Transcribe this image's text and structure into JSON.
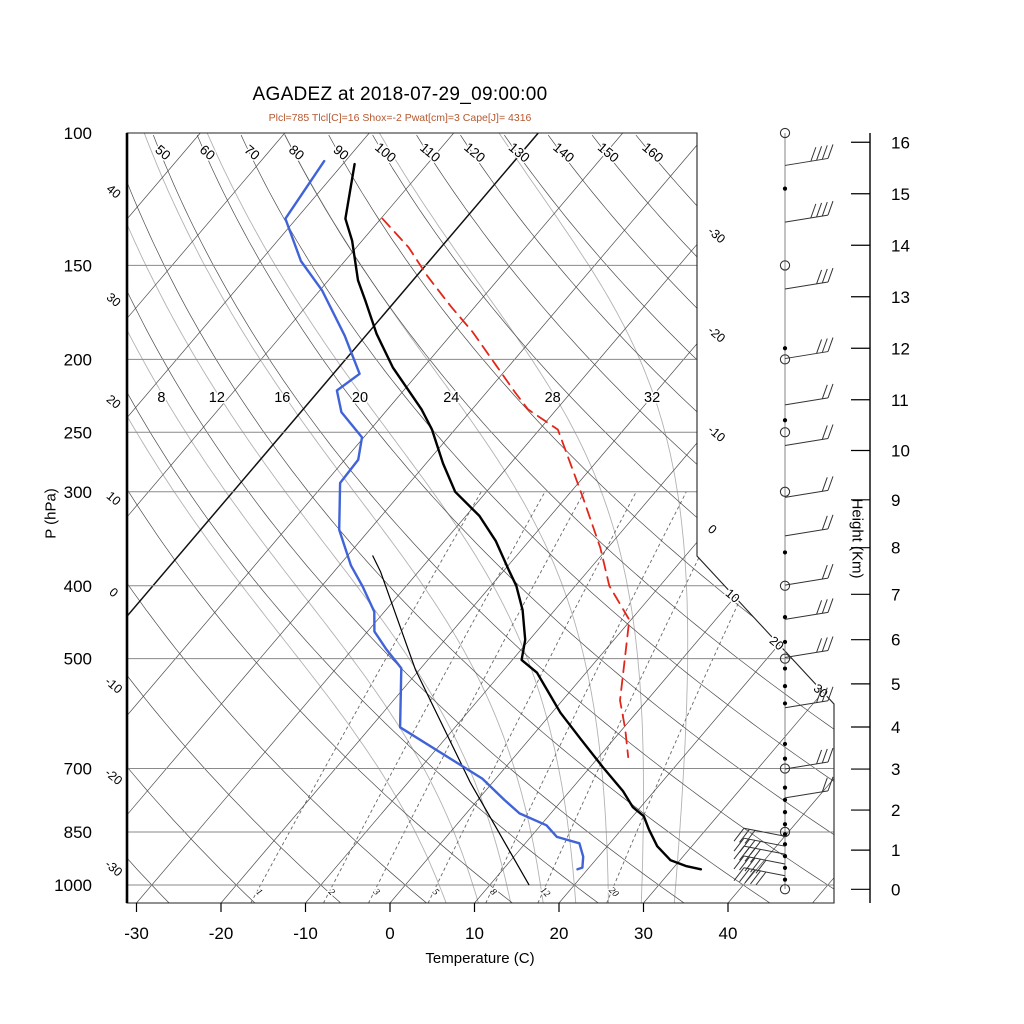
{
  "chart_data": {
    "type": "skewt-logp",
    "title": "AGADEZ at 2018-07-29_09:00:00",
    "subtitle": "Plcl=785 Tlcl[C]=16 Shox=-2 Pwat[cm]=3 Cape[J]= 4316",
    "station": "AGADEZ",
    "datetime": "2018-07-29_09:00:00",
    "params": {
      "plcl_hpa": 785,
      "tlcl_c": 16,
      "showalter": -2,
      "pwat_cm": 3,
      "cape_j": 4316
    },
    "axes": {
      "pressure": {
        "label": "P (hPa)",
        "ticks": [
          100,
          150,
          200,
          250,
          300,
          400,
          500,
          700,
          850,
          1000
        ]
      },
      "temperature": {
        "label": "Temperature (C)",
        "ticks": [
          -30,
          -20,
          -10,
          0,
          10,
          20,
          30,
          40
        ]
      },
      "height": {
        "label": "Height (Km)",
        "ticks": [
          0,
          1,
          2,
          3,
          4,
          5,
          6,
          7,
          8,
          9,
          10,
          11,
          12,
          13,
          14,
          15,
          16
        ]
      }
    },
    "grid": {
      "isotherms": {
        "min": -100,
        "max": 50,
        "step": 10,
        "highlight": -60,
        "labels_right_edge": [
          -30,
          -20,
          -10,
          0
        ],
        "labels_diagonal": [
          10,
          20,
          30
        ]
      },
      "dry_adiabats": {
        "min": -30,
        "max": 160,
        "step": 10,
        "labels_left_edge": [
          40,
          30,
          20,
          10,
          0,
          -10,
          -20,
          -30
        ],
        "labels_top_edge": [
          50,
          60,
          70,
          80,
          90,
          100,
          110,
          120,
          130,
          140,
          150,
          160
        ]
      },
      "moist_adiabats": {
        "values": [
          4,
          8,
          12,
          16,
          20,
          24,
          28,
          32
        ],
        "labeled": [
          8,
          12,
          16,
          20,
          24,
          28,
          32
        ]
      },
      "mixing_ratio_g_kg": [
        1,
        2,
        3,
        5,
        8,
        12,
        20
      ]
    },
    "series": {
      "temperature_p_t": [
        [
          110,
          -78.6
        ],
        [
          130,
          -74.2
        ],
        [
          139,
          -71.2
        ],
        [
          157,
          -66.5
        ],
        [
          167,
          -63.6
        ],
        [
          185,
          -58.9
        ],
        [
          205,
          -53.6
        ],
        [
          233,
          -46.0
        ],
        [
          248,
          -42.7
        ],
        [
          275,
          -38.0
        ],
        [
          300,
          -33.7
        ],
        [
          323,
          -28.4
        ],
        [
          349,
          -23.9
        ],
        [
          381,
          -19.5
        ],
        [
          400,
          -17.0
        ],
        [
          431,
          -13.8
        ],
        [
          472,
          -10.5
        ],
        [
          502,
          -8.9
        ],
        [
          522,
          -5.8
        ],
        [
          546,
          -3.3
        ],
        [
          590,
          1.0
        ],
        [
          640,
          6.1
        ],
        [
          697,
          11.5
        ],
        [
          750,
          16.3
        ],
        [
          788,
          19.1
        ],
        [
          810,
          21.3
        ],
        [
          843,
          23.2
        ],
        [
          888,
          25.9
        ],
        [
          927,
          28.9
        ],
        [
          944,
          31.4
        ],
        [
          953,
          33.4
        ]
      ],
      "dewpoint_p_t": [
        [
          109,
          -82.5
        ],
        [
          130,
          -81.3
        ],
        [
          148,
          -75.2
        ],
        [
          162,
          -69.7
        ],
        [
          186,
          -62.5
        ],
        [
          209,
          -56.9
        ],
        [
          220,
          -57.9
        ],
        [
          235,
          -55.2
        ],
        [
          254,
          -50.2
        ],
        [
          272,
          -48.4
        ],
        [
          292,
          -48.2
        ],
        [
          337,
          -43.6
        ],
        [
          376,
          -38.6
        ],
        [
          401,
          -35.1
        ],
        [
          433,
          -31.2
        ],
        [
          460,
          -29.2
        ],
        [
          485,
          -26.1
        ],
        [
          515,
          -22.3
        ],
        [
          617,
          -16.5
        ],
        [
          722,
          -1.6
        ],
        [
          771,
          3.2
        ],
        [
          803,
          6.3
        ],
        [
          833,
          10.7
        ],
        [
          863,
          13.1
        ],
        [
          880,
          16.4
        ],
        [
          917,
          18.2
        ],
        [
          948,
          19.2
        ],
        [
          953,
          18.8
        ]
      ],
      "wet_bulb_p_t": [
        [
          365,
          -37.0
        ],
        [
          383,
          -34.5
        ],
        [
          517,
          -20.5
        ],
        [
          731,
          -2.6
        ],
        [
          999,
          14.6
        ]
      ],
      "parcel_p_t": [
        [
          130,
          -69.8
        ],
        [
          142,
          -63.8
        ],
        [
          155,
          -58.7
        ],
        [
          170,
          -52.9
        ],
        [
          184,
          -47.7
        ],
        [
          204,
          -41.5
        ],
        [
          221,
          -36.7
        ],
        [
          233,
          -33.4
        ],
        [
          248,
          -27.8
        ],
        [
          306,
          -17.9
        ],
        [
          356,
          -10.9
        ],
        [
          400,
          -6.0
        ],
        [
          444,
          -0.2
        ],
        [
          502,
          3.3
        ],
        [
          568,
          6.8
        ],
        [
          620,
          10.3
        ],
        [
          676,
          13.5
        ]
      ]
    },
    "wind_column": {
      "barbs": [
        {
          "km": 15.55,
          "dir": "W",
          "feathers": 4
        },
        {
          "km": 14.45,
          "dir": "W",
          "feathers": 4
        },
        {
          "km": 13.15,
          "dir": "W",
          "feathers": 3
        },
        {
          "km": 11.8,
          "dir": "W",
          "feathers": 3
        },
        {
          "km": 10.9,
          "dir": "W",
          "feathers": 2
        },
        {
          "km": 10.1,
          "dir": "W",
          "feathers": 2
        },
        {
          "km": 9.05,
          "dir": "W",
          "feathers": 2
        },
        {
          "km": 8.25,
          "dir": "W",
          "feathers": 2
        },
        {
          "km": 7.2,
          "dir": "W",
          "feathers": 2
        },
        {
          "km": 6.45,
          "dir": "W",
          "feathers": 3
        },
        {
          "km": 5.6,
          "dir": "W",
          "feathers": 3
        },
        {
          "km": 4.45,
          "dir": "W",
          "feathers": 3
        },
        {
          "km": 3.0,
          "dir": "W",
          "feathers": 3
        },
        {
          "km": 2.3,
          "dir": "W",
          "feathers": 2
        },
        {
          "km": 1.35,
          "dir": "E",
          "feathers": 3
        },
        {
          "km": 1.1,
          "dir": "E",
          "feathers": 4
        },
        {
          "km": 0.9,
          "dir": "E",
          "feathers": 4
        },
        {
          "km": 0.65,
          "dir": "E",
          "feathers": 5
        },
        {
          "km": 0.35,
          "dir": "E",
          "feathers": 5
        }
      ],
      "level_circles_hpa": [
        100,
        150,
        200,
        250,
        300,
        400,
        500,
        700,
        850,
        1013
      ],
      "level_dots_km": [
        15.1,
        12.0,
        10.6,
        7.9,
        6.5,
        5.95,
        5.35,
        4.95,
        4.55,
        3.6,
        3.25,
        2.55,
        2.25,
        1.95,
        1.65,
        1.4,
        1.15,
        0.85,
        0.55,
        0.25
      ]
    },
    "colors": {
      "temperature": "#000000",
      "dewpoint": "#4063d8",
      "wet_bulb": "#000000",
      "parcel": "#e3261a",
      "subtitle": "#b5582f",
      "moist_adiabat": "#b2b2b2",
      "grid_line": "#4d4d4d",
      "pressure_line": "#8a8a8a",
      "mixing_line": "#666666"
    }
  }
}
